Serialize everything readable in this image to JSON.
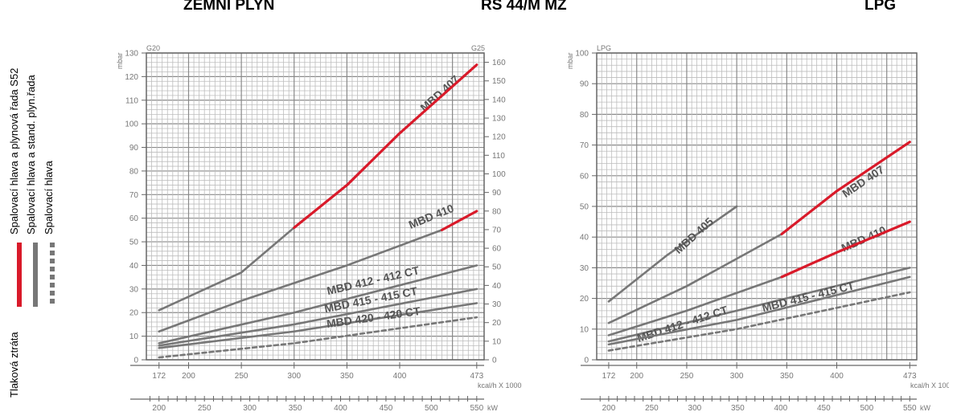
{
  "titles": {
    "left": "ZEMNÍ PLYN",
    "center": "RS 44/M MZ",
    "right": "LPG"
  },
  "legend": {
    "title": "Tlaková ztráta",
    "items": [
      {
        "label": "Spalovací hlava a plynová řada  S52",
        "color": "#d91a2a",
        "style": "solid"
      },
      {
        "label": "Spalovací hlava a stand. plyn.řada",
        "color": "#777777",
        "style": "solid"
      },
      {
        "label": "Spalovací hlava",
        "color": "#777777",
        "style": "dashed"
      }
    ]
  },
  "chart_data": [
    {
      "type": "line",
      "gas_left": "G20",
      "gas_right": "G25",
      "ylabel": "mbar",
      "xlabel_kcal": "kcal/h X 1000",
      "xlabel_kw": "kW",
      "ylim": [
        0,
        130
      ],
      "y_ticks": [
        0,
        10,
        20,
        30,
        40,
        50,
        60,
        70,
        80,
        90,
        100,
        110,
        120,
        130
      ],
      "ylim_right": [
        0,
        165
      ],
      "y_right_ticks": [
        0,
        10,
        20,
        30,
        40,
        50,
        60,
        70,
        80,
        90,
        100,
        110,
        120,
        130,
        140,
        150,
        160
      ],
      "xlim": [
        160,
        480
      ],
      "x_tick_labels": [
        "172",
        "200",
        "250",
        "300",
        "350",
        "400",
        "473"
      ],
      "x_ticks": [
        172,
        200,
        250,
        300,
        350,
        400,
        473
      ],
      "kw_ticks": [
        200,
        250,
        300,
        350,
        400,
        450,
        500,
        550
      ],
      "grid": true,
      "series": [
        {
          "name": "MBD 407",
          "color": "#777777",
          "dash": false,
          "points": [
            [
              172,
              21
            ],
            [
              250,
              37
            ],
            [
              300,
              56
            ]
          ]
        },
        {
          "name": "",
          "color": "#d91a2a",
          "dash": false,
          "points": [
            [
              300,
              56
            ],
            [
              350,
              74
            ],
            [
              400,
              96
            ],
            [
              473,
              125
            ]
          ]
        },
        {
          "name": "MBD 410",
          "color": "#777777",
          "dash": false,
          "points": [
            [
              172,
              12
            ],
            [
              250,
              25
            ],
            [
              350,
              40
            ],
            [
              440,
              55
            ]
          ]
        },
        {
          "name": "",
          "color": "#d91a2a",
          "dash": false,
          "points": [
            [
              440,
              55
            ],
            [
              473,
              63
            ]
          ]
        },
        {
          "name": "MBD 412 - 412 CT",
          "color": "#777777",
          "dash": false,
          "points": [
            [
              172,
              7
            ],
            [
              300,
              20
            ],
            [
              473,
              40
            ]
          ]
        },
        {
          "name": "MBD 415 - 415 CT",
          "color": "#777777",
          "dash": false,
          "points": [
            [
              172,
              6
            ],
            [
              300,
              15
            ],
            [
              473,
              30
            ]
          ]
        },
        {
          "name": "MBD 420 - 420 CT",
          "color": "#777777",
          "dash": false,
          "points": [
            [
              172,
              5
            ],
            [
              300,
              12
            ],
            [
              473,
              24
            ]
          ]
        },
        {
          "name": "",
          "color": "#777777",
          "dash": true,
          "points": [
            [
              172,
              1
            ],
            [
              300,
              7
            ],
            [
              473,
              18
            ]
          ]
        }
      ]
    },
    {
      "type": "line",
      "gas_left": "LPG",
      "ylabel": "mbar",
      "xlabel_kcal": "kcal/h X 1000",
      "xlabel_kw": "kW",
      "ylim": [
        0,
        100
      ],
      "y_ticks": [
        0,
        10,
        20,
        30,
        40,
        50,
        60,
        70,
        80,
        90,
        100
      ],
      "xlim": [
        160,
        480
      ],
      "x_tick_labels": [
        "172",
        "200",
        "250",
        "300",
        "350",
        "400",
        "473"
      ],
      "x_ticks": [
        172,
        200,
        250,
        300,
        350,
        400,
        473
      ],
      "kw_ticks": [
        200,
        250,
        300,
        350,
        400,
        450,
        500,
        550
      ],
      "grid": true,
      "series": [
        {
          "name": "MBD 405",
          "color": "#777777",
          "dash": false,
          "points": [
            [
              172,
              19
            ],
            [
              230,
              34
            ],
            [
              300,
              50
            ]
          ]
        },
        {
          "name": "MBD 407",
          "color": "#777777",
          "dash": false,
          "points": [
            [
              172,
              12
            ],
            [
              250,
              24
            ],
            [
              345,
              41
            ]
          ]
        },
        {
          "name": "",
          "color": "#d91a2a",
          "dash": false,
          "points": [
            [
              345,
              41
            ],
            [
              400,
              55
            ],
            [
              473,
              71
            ]
          ]
        },
        {
          "name": "MBD 410",
          "color": "#777777",
          "dash": false,
          "points": [
            [
              172,
              8
            ],
            [
              250,
              16
            ],
            [
              345,
              27
            ]
          ]
        },
        {
          "name": "",
          "color": "#d91a2a",
          "dash": false,
          "points": [
            [
              345,
              27
            ],
            [
              400,
              35
            ],
            [
              473,
              45
            ]
          ]
        },
        {
          "name": "MBD 412 - 412 CT",
          "color": "#777777",
          "dash": false,
          "points": [
            [
              172,
              6
            ],
            [
              300,
              16
            ],
            [
              473,
              30
            ]
          ]
        },
        {
          "name": "MBD 415 - 415 CT",
          "color": "#777777",
          "dash": false,
          "points": [
            [
              172,
              5
            ],
            [
              300,
              13
            ],
            [
              473,
              27
            ]
          ]
        },
        {
          "name": "",
          "color": "#777777",
          "dash": true,
          "points": [
            [
              172,
              3
            ],
            [
              300,
              10
            ],
            [
              473,
              22
            ]
          ]
        }
      ]
    }
  ]
}
